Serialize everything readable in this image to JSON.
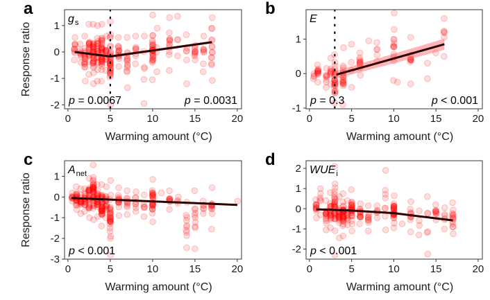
{
  "figure": {
    "shared_xlabel": "Warming amount (°C)",
    "shared_ylabel": "Response ratio"
  },
  "colors": {
    "point": "#ff0000",
    "fit_line": "#2a0000",
    "ci_band": "#ff6b6b",
    "breakpoint_line": "#000000",
    "frame": "#555555"
  },
  "chart_data": [
    {
      "type": "scatter",
      "panel": "a",
      "title": "",
      "variable": "g",
      "variable_sub": "s",
      "xlabel": "Warming amount (°C)",
      "ylabel": "Response ratio",
      "xlim": [
        -0.4,
        20.5
      ],
      "ylim": [
        -2.15,
        1.6
      ],
      "xticks": [
        0,
        5,
        10,
        15,
        20
      ],
      "yticks": [
        1,
        0,
        -1,
        -2
      ],
      "breakpoint_x": 5,
      "fit": {
        "kind": "segmented",
        "x": [
          0.8,
          5,
          17
        ],
        "y": [
          0.0,
          -0.17,
          0.37
        ]
      },
      "ci_halfwidth": 0.05,
      "annotations": [
        {
          "text_p": "p",
          "text_rest": " = 0.0067",
          "position": "bottom-left"
        },
        {
          "text_p": "p",
          "text_rest": " = 0.0031",
          "position": "bottom-right"
        }
      ],
      "columns": [
        {
          "x": 0.8,
          "ymin": -0.3,
          "ymax": 0.55,
          "n": 10
        },
        {
          "x": 1.5,
          "ymin": -0.4,
          "ymax": 0.3,
          "n": 8
        },
        {
          "x": 2.0,
          "ymin": -1.1,
          "ymax": 0.6,
          "n": 16
        },
        {
          "x": 2.5,
          "ymin": -0.85,
          "ymax": 1.05,
          "n": 18
        },
        {
          "x": 3.0,
          "ymin": -1.2,
          "ymax": 1.05,
          "n": 30
        },
        {
          "x": 3.5,
          "ymin": -1.1,
          "ymax": 1.0,
          "n": 20
        },
        {
          "x": 4.0,
          "ymin": -1.1,
          "ymax": 1.05,
          "n": 34
        },
        {
          "x": 4.5,
          "ymin": -0.7,
          "ymax": 0.6,
          "n": 12
        },
        {
          "x": 5.0,
          "ymin": -2.0,
          "ymax": 1.15,
          "n": 34
        },
        {
          "x": 6.0,
          "ymin": -0.55,
          "ymax": 0.55,
          "n": 14
        },
        {
          "x": 7.0,
          "ymin": -1.35,
          "ymax": 0.55,
          "n": 14
        },
        {
          "x": 8.0,
          "ymin": -0.45,
          "ymax": 0.6,
          "n": 8
        },
        {
          "x": 9.0,
          "ymin": -1.95,
          "ymax": 0.6,
          "n": 6
        },
        {
          "x": 10.0,
          "ymin": -1.05,
          "ymax": 1.4,
          "n": 30
        },
        {
          "x": 10.5,
          "ymin": -0.75,
          "ymax": 0.9,
          "n": 4
        },
        {
          "x": 12.0,
          "ymin": -0.7,
          "ymax": 1.3,
          "n": 12
        },
        {
          "x": 13.0,
          "ymin": -0.15,
          "ymax": 1.35,
          "n": 4
        },
        {
          "x": 14.0,
          "ymin": -1.2,
          "ymax": 0.65,
          "n": 6
        },
        {
          "x": 15.0,
          "ymin": -0.3,
          "ymax": 0.25,
          "n": 10
        },
        {
          "x": 16.0,
          "ymin": -0.75,
          "ymax": 0.6,
          "n": 8
        },
        {
          "x": 17.0,
          "ymin": -1.08,
          "ymax": 1.3,
          "n": 14
        }
      ]
    },
    {
      "type": "scatter",
      "panel": "b",
      "variable": "E",
      "variable_sub": "",
      "xlabel": "Warming amount (°C)",
      "ylabel": "",
      "xlim": [
        -0.4,
        20.5
      ],
      "ylim": [
        -1.02,
        1.85
      ],
      "xticks": [
        0,
        5,
        10,
        15,
        20
      ],
      "yticks": [
        1,
        0,
        -1
      ],
      "breakpoint_x": 3,
      "fit": {
        "kind": "segmented",
        "x": [
          3.2,
          16
        ],
        "y": [
          -0.03,
          0.85
        ]
      },
      "ci_halfwidth": 0.1,
      "annotations": [
        {
          "text_p": "p",
          "text_rest": " = 0.3",
          "position": "bottom-left"
        },
        {
          "text_p": "p",
          "text_rest": " < 0.001",
          "position": "bottom-right"
        }
      ],
      "columns": [
        {
          "x": 0.5,
          "ymin": -0.15,
          "ymax": 0.0,
          "n": 4
        },
        {
          "x": 1.0,
          "ymin": -0.25,
          "ymax": 0.25,
          "n": 12
        },
        {
          "x": 2.0,
          "ymin": -0.4,
          "ymax": 0.15,
          "n": 8
        },
        {
          "x": 2.5,
          "ymin": -0.3,
          "ymax": 0.45,
          "n": 8
        },
        {
          "x": 3.0,
          "ymin": -0.85,
          "ymax": 0.55,
          "n": 26
        },
        {
          "x": 4.0,
          "ymin": -0.9,
          "ymax": 0.75,
          "n": 20
        },
        {
          "x": 5.0,
          "ymin": -0.4,
          "ymax": 0.85,
          "n": 4
        },
        {
          "x": 6.0,
          "ymin": -0.05,
          "ymax": 0.6,
          "n": 12
        },
        {
          "x": 7.0,
          "ymin": 0.95,
          "ymax": 0.95,
          "n": 1
        },
        {
          "x": 8.0,
          "ymin": 0.35,
          "ymax": 0.9,
          "n": 5
        },
        {
          "x": 10.0,
          "ymin": -0.2,
          "ymax": 1.75,
          "n": 14
        },
        {
          "x": 10.4,
          "ymin": -0.25,
          "ymax": -0.25,
          "n": 1
        },
        {
          "x": 12.0,
          "ymin": -0.3,
          "ymax": 1.05,
          "n": 10
        },
        {
          "x": 14.0,
          "ymin": -0.15,
          "ymax": 0.3,
          "n": 2
        },
        {
          "x": 15.0,
          "ymin": 0.6,
          "ymax": 0.6,
          "n": 1
        },
        {
          "x": 16.0,
          "ymin": 0.5,
          "ymax": 1.6,
          "n": 6
        }
      ]
    },
    {
      "type": "scatter",
      "panel": "c",
      "variable": "A",
      "variable_sub": "net",
      "xlabel": "Warming amount (°C)",
      "ylabel": "Response ratio",
      "xlim": [
        -0.4,
        20.5
      ],
      "ylim": [
        -3.0,
        1.75
      ],
      "xticks": [
        0,
        5,
        10,
        15,
        20
      ],
      "yticks": [
        1,
        0,
        -1,
        -2,
        -3
      ],
      "breakpoint_x": null,
      "fit": {
        "kind": "linear",
        "x": [
          0.4,
          20
        ],
        "y": [
          -0.05,
          -0.38
        ]
      },
      "ci_halfwidth": 0.03,
      "annotations": [
        {
          "text_p": "p",
          "text_rest": " < 0.001",
          "position": "bottom-left"
        }
      ],
      "columns": [
        {
          "x": 0.5,
          "ymin": -0.2,
          "ymax": 0.2,
          "n": 8
        },
        {
          "x": 1.0,
          "ymin": -0.6,
          "ymax": 0.5,
          "n": 20
        },
        {
          "x": 1.5,
          "ymin": -0.8,
          "ymax": 0.4,
          "n": 14
        },
        {
          "x": 2.0,
          "ymin": -0.7,
          "ymax": 0.4,
          "n": 16
        },
        {
          "x": 2.5,
          "ymin": -1.0,
          "ymax": 0.9,
          "n": 24
        },
        {
          "x": 3.0,
          "ymin": -1.1,
          "ymax": 1.55,
          "n": 36
        },
        {
          "x": 3.5,
          "ymin": -0.95,
          "ymax": 0.6,
          "n": 22
        },
        {
          "x": 4.0,
          "ymin": -1.4,
          "ymax": 0.6,
          "n": 34
        },
        {
          "x": 4.5,
          "ymin": -1.0,
          "ymax": 0.5,
          "n": 16
        },
        {
          "x": 5.0,
          "ymin": -2.8,
          "ymax": 0.8,
          "n": 30
        },
        {
          "x": 6.0,
          "ymin": -0.9,
          "ymax": 0.45,
          "n": 14
        },
        {
          "x": 7.0,
          "ymin": -0.85,
          "ymax": 0.3,
          "n": 10
        },
        {
          "x": 8.0,
          "ymin": -0.7,
          "ymax": 0.25,
          "n": 8
        },
        {
          "x": 9.0,
          "ymin": -0.95,
          "ymax": 0.1,
          "n": 6
        },
        {
          "x": 10.0,
          "ymin": -1.2,
          "ymax": 0.85,
          "n": 28
        },
        {
          "x": 11.0,
          "ymin": 0.2,
          "ymax": 0.2,
          "n": 1
        },
        {
          "x": 12.0,
          "ymin": -0.6,
          "ymax": 0.3,
          "n": 10
        },
        {
          "x": 13.0,
          "ymin": -0.3,
          "ymax": 0.0,
          "n": 4
        },
        {
          "x": 14.0,
          "ymin": -2.45,
          "ymax": -0.25,
          "n": 10
        },
        {
          "x": 15.0,
          "ymin": -2.5,
          "ymax": 0.3,
          "n": 10
        },
        {
          "x": 16.0,
          "ymin": -0.8,
          "ymax": -0.2,
          "n": 6
        },
        {
          "x": 17.0,
          "ymin": -1.55,
          "ymax": 0.45,
          "n": 12
        },
        {
          "x": 20.0,
          "ymin": -0.2,
          "ymax": -0.2,
          "n": 1
        }
      ]
    },
    {
      "type": "scatter",
      "panel": "d",
      "variable": "WUE",
      "variable_sub": "i",
      "xlabel": "Warming amount (°C)",
      "ylabel": "",
      "xlim": [
        -0.4,
        20.5
      ],
      "ylim": [
        -2.5,
        2.38
      ],
      "xticks": [
        0,
        5,
        10,
        15,
        20
      ],
      "yticks": [
        2,
        1,
        0,
        -1,
        -2
      ],
      "breakpoint_x": null,
      "fit": {
        "kind": "curve",
        "x": [
          0.8,
          5,
          10,
          17
        ],
        "y": [
          -0.03,
          -0.09,
          -0.22,
          -0.58
        ]
      },
      "ci_halfwidth": 0.04,
      "annotations": [
        {
          "text_p": "p",
          "text_rest": " < 0.001",
          "position": "bottom-left"
        }
      ],
      "columns": [
        {
          "x": 0.8,
          "ymin": -0.45,
          "ymax": 0.45,
          "n": 12
        },
        {
          "x": 1.3,
          "ymin": -0.3,
          "ymax": 1.0,
          "n": 6
        },
        {
          "x": 2.0,
          "ymin": -1.05,
          "ymax": 0.4,
          "n": 14
        },
        {
          "x": 2.5,
          "ymin": -0.95,
          "ymax": 0.8,
          "n": 18
        },
        {
          "x": 3.0,
          "ymin": -2.3,
          "ymax": 2.1,
          "n": 30
        },
        {
          "x": 3.5,
          "ymin": -1.45,
          "ymax": 0.6,
          "n": 18
        },
        {
          "x": 4.0,
          "ymin": -1.35,
          "ymax": 0.75,
          "n": 32
        },
        {
          "x": 4.5,
          "ymin": -0.8,
          "ymax": 0.4,
          "n": 10
        },
        {
          "x": 5.0,
          "ymin": -1.1,
          "ymax": 0.95,
          "n": 26
        },
        {
          "x": 6.0,
          "ymin": -0.75,
          "ymax": 0.25,
          "n": 14
        },
        {
          "x": 7.0,
          "ymin": -1.1,
          "ymax": 0.15,
          "n": 10
        },
        {
          "x": 8.0,
          "ymin": -0.45,
          "ymax": 0.15,
          "n": 6
        },
        {
          "x": 9.0,
          "ymin": -1.05,
          "ymax": 1.9,
          "n": 8
        },
        {
          "x": 10.0,
          "ymin": -0.95,
          "ymax": 0.65,
          "n": 28
        },
        {
          "x": 11.0,
          "ymin": -0.75,
          "ymax": -0.75,
          "n": 1
        },
        {
          "x": 12.0,
          "ymin": -1.15,
          "ymax": 0.35,
          "n": 10
        },
        {
          "x": 13.0,
          "ymin": -1.3,
          "ymax": -0.1,
          "n": 4
        },
        {
          "x": 14.0,
          "ymin": -2.25,
          "ymax": 0.6,
          "n": 6
        },
        {
          "x": 15.0,
          "ymin": -0.55,
          "ymax": 0.2,
          "n": 10
        },
        {
          "x": 16.0,
          "ymin": -1.0,
          "ymax": 0.05,
          "n": 6
        },
        {
          "x": 17.0,
          "ymin": -1.25,
          "ymax": 0.3,
          "n": 14
        }
      ]
    }
  ]
}
